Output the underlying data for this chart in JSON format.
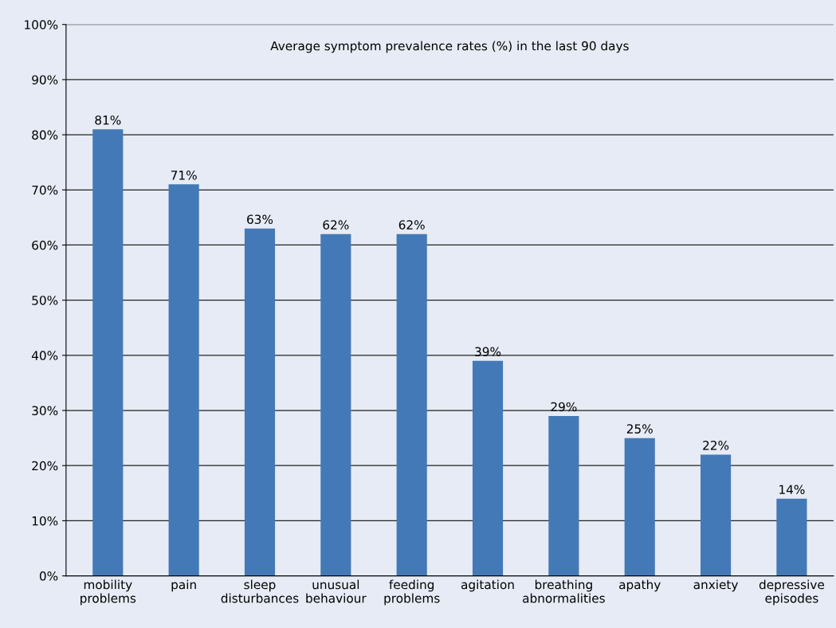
{
  "chart_data": {
    "type": "bar",
    "title": "Average symptom prevalence rates (%) in the last 90 days",
    "categories": [
      "mobility\nproblems",
      "pain",
      "sleep\ndisturbances",
      "unusual\nbehaviour",
      "feeding\nproblems",
      "agitation",
      "breathing\nabnormalities",
      "apathy",
      "anxiety",
      "depressive\nepisodes"
    ],
    "values": [
      81,
      71,
      63,
      62,
      62,
      39,
      29,
      25,
      22,
      14
    ],
    "value_labels": [
      "81%",
      "71%",
      "63%",
      "62%",
      "62%",
      "39%",
      "29%",
      "25%",
      "22%",
      "14%"
    ],
    "color": "#4479b7",
    "ylim": [
      0,
      100
    ],
    "yticks": [
      {
        "value": 0,
        "label": "0%"
      },
      {
        "value": 10,
        "label": "10%"
      },
      {
        "value": 20,
        "label": "20%"
      },
      {
        "value": 30,
        "label": "30%"
      },
      {
        "value": 40,
        "label": "40%"
      },
      {
        "value": 50,
        "label": "50%"
      },
      {
        "value": 60,
        "label": "60%"
      },
      {
        "value": 70,
        "label": "70%"
      },
      {
        "value": 80,
        "label": "80%"
      },
      {
        "value": 90,
        "label": "90%"
      },
      {
        "value": 100,
        "label": "100%"
      }
    ],
    "grid": "y"
  }
}
